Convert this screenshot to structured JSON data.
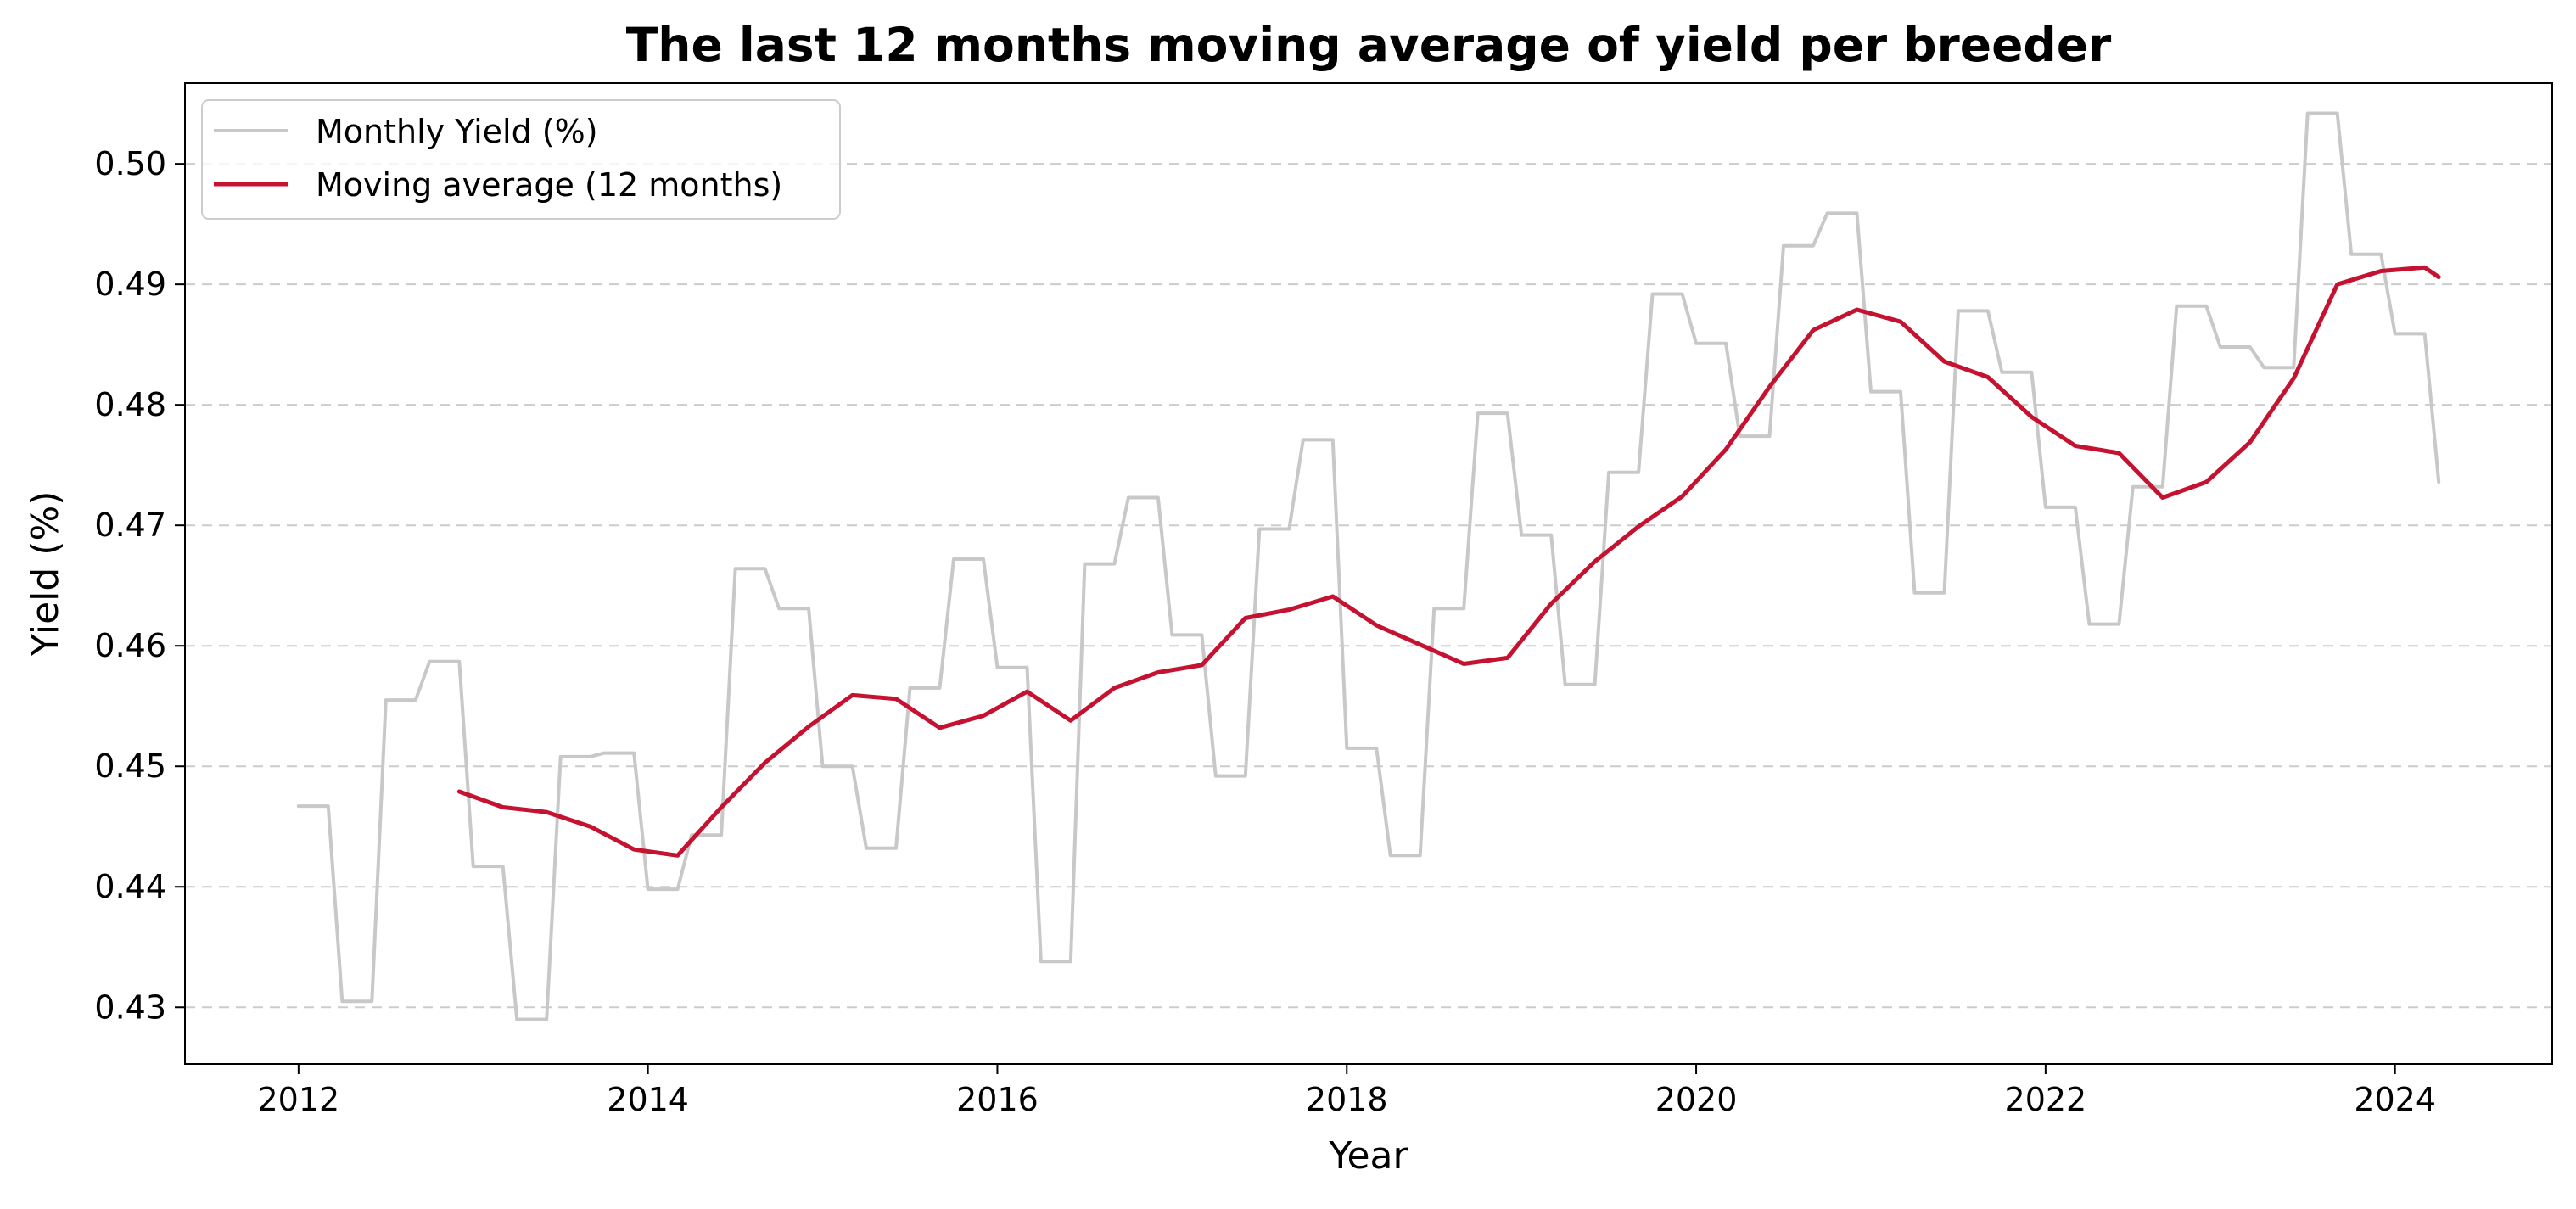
{
  "chart_data": {
    "type": "line",
    "title": "The last 12 months moving average of yield per breeder",
    "xlabel": "Year",
    "ylabel": "Yield (%)",
    "xlim": [
      2011.35,
      2024.9
    ],
    "ylim": [
      0.4253,
      0.5067
    ],
    "xticks": [
      2012,
      2014,
      2016,
      2018,
      2020,
      2022,
      2024
    ],
    "xtick_labels": [
      "2012",
      "2014",
      "2016",
      "2018",
      "2020",
      "2022",
      "2024"
    ],
    "yticks": [
      0.43,
      0.44,
      0.45,
      0.46,
      0.47,
      0.48,
      0.49,
      0.5
    ],
    "ytick_labels": [
      "0.43",
      "0.44",
      "0.45",
      "0.46",
      "0.47",
      "0.48",
      "0.49",
      "0.50"
    ],
    "grid": {
      "y": true,
      "x": false,
      "style": "dashed"
    },
    "legend": {
      "position": "upper-left",
      "entries": [
        "Monthly Yield (%)",
        "Moving average (12 months)"
      ]
    },
    "series": [
      {
        "name": "Monthly Yield (%)",
        "color": "#c8c8c8",
        "points": [
          [
            2012.0,
            0.4467
          ],
          [
            2012.17,
            0.4467
          ],
          [
            2012.25,
            0.4305
          ],
          [
            2012.42,
            0.4305
          ],
          [
            2012.5,
            0.4555
          ],
          [
            2012.67,
            0.4555
          ],
          [
            2012.75,
            0.4587
          ],
          [
            2012.92,
            0.4587
          ],
          [
            2013.0,
            0.4417
          ],
          [
            2013.17,
            0.4417
          ],
          [
            2013.25,
            0.429
          ],
          [
            2013.42,
            0.429
          ],
          [
            2013.5,
            0.4508
          ],
          [
            2013.67,
            0.4508
          ],
          [
            2013.75,
            0.4511
          ],
          [
            2013.92,
            0.4511
          ],
          [
            2014.0,
            0.4398
          ],
          [
            2014.17,
            0.4398
          ],
          [
            2014.25,
            0.4443
          ],
          [
            2014.42,
            0.4443
          ],
          [
            2014.5,
            0.4664
          ],
          [
            2014.67,
            0.4664
          ],
          [
            2014.75,
            0.4631
          ],
          [
            2014.92,
            0.4631
          ],
          [
            2015.0,
            0.45
          ],
          [
            2015.17,
            0.45
          ],
          [
            2015.25,
            0.4432
          ],
          [
            2015.42,
            0.4432
          ],
          [
            2015.5,
            0.4565
          ],
          [
            2015.67,
            0.4565
          ],
          [
            2015.75,
            0.4672
          ],
          [
            2015.92,
            0.4672
          ],
          [
            2016.0,
            0.4582
          ],
          [
            2016.17,
            0.4582
          ],
          [
            2016.25,
            0.4338
          ],
          [
            2016.42,
            0.4338
          ],
          [
            2016.5,
            0.4668
          ],
          [
            2016.67,
            0.4668
          ],
          [
            2016.75,
            0.4723
          ],
          [
            2016.92,
            0.4723
          ],
          [
            2017.0,
            0.4609
          ],
          [
            2017.17,
            0.4609
          ],
          [
            2017.25,
            0.4492
          ],
          [
            2017.42,
            0.4492
          ],
          [
            2017.5,
            0.4697
          ],
          [
            2017.67,
            0.4697
          ],
          [
            2017.75,
            0.4771
          ],
          [
            2017.92,
            0.4771
          ],
          [
            2018.0,
            0.4515
          ],
          [
            2018.17,
            0.4515
          ],
          [
            2018.25,
            0.4426
          ],
          [
            2018.42,
            0.4426
          ],
          [
            2018.5,
            0.4631
          ],
          [
            2018.67,
            0.4631
          ],
          [
            2018.75,
            0.4793
          ],
          [
            2018.92,
            0.4793
          ],
          [
            2019.0,
            0.4692
          ],
          [
            2019.17,
            0.4692
          ],
          [
            2019.25,
            0.4568
          ],
          [
            2019.42,
            0.4568
          ],
          [
            2019.5,
            0.4744
          ],
          [
            2019.67,
            0.4744
          ],
          [
            2019.75,
            0.4892
          ],
          [
            2019.92,
            0.4892
          ],
          [
            2020.0,
            0.4851
          ],
          [
            2020.17,
            0.4851
          ],
          [
            2020.25,
            0.4774
          ],
          [
            2020.42,
            0.4774
          ],
          [
            2020.5,
            0.4932
          ],
          [
            2020.67,
            0.4932
          ],
          [
            2020.75,
            0.4959
          ],
          [
            2020.92,
            0.4959
          ],
          [
            2021.0,
            0.4811
          ],
          [
            2021.17,
            0.4811
          ],
          [
            2021.25,
            0.4644
          ],
          [
            2021.42,
            0.4644
          ],
          [
            2021.5,
            0.4878
          ],
          [
            2021.67,
            0.4878
          ],
          [
            2021.75,
            0.4827
          ],
          [
            2021.92,
            0.4827
          ],
          [
            2022.0,
            0.4715
          ],
          [
            2022.17,
            0.4715
          ],
          [
            2022.25,
            0.4618
          ],
          [
            2022.42,
            0.4618
          ],
          [
            2022.5,
            0.4732
          ],
          [
            2022.67,
            0.4732
          ],
          [
            2022.75,
            0.4882
          ],
          [
            2022.92,
            0.4882
          ],
          [
            2023.0,
            0.4848
          ],
          [
            2023.17,
            0.4848
          ],
          [
            2023.25,
            0.4831
          ],
          [
            2023.42,
            0.4831
          ],
          [
            2023.5,
            0.5042
          ],
          [
            2023.67,
            0.5042
          ],
          [
            2023.75,
            0.4925
          ],
          [
            2023.92,
            0.4925
          ],
          [
            2024.0,
            0.4859
          ],
          [
            2024.17,
            0.4859
          ],
          [
            2024.25,
            0.4736
          ]
        ]
      },
      {
        "name": "Moving average (12 months)",
        "color": "#c41230",
        "points": [
          [
            2012.92,
            0.4479
          ],
          [
            2013.17,
            0.4466
          ],
          [
            2013.42,
            0.4462
          ],
          [
            2013.67,
            0.445
          ],
          [
            2013.92,
            0.4431
          ],
          [
            2014.17,
            0.4426
          ],
          [
            2014.42,
            0.4466
          ],
          [
            2014.67,
            0.4503
          ],
          [
            2014.92,
            0.4533
          ],
          [
            2015.17,
            0.4559
          ],
          [
            2015.42,
            0.4556
          ],
          [
            2015.67,
            0.4532
          ],
          [
            2015.92,
            0.4542
          ],
          [
            2016.17,
            0.4562
          ],
          [
            2016.42,
            0.4538
          ],
          [
            2016.67,
            0.4565
          ],
          [
            2016.92,
            0.4578
          ],
          [
            2017.17,
            0.4584
          ],
          [
            2017.42,
            0.4623
          ],
          [
            2017.67,
            0.463
          ],
          [
            2017.92,
            0.4641
          ],
          [
            2018.17,
            0.4617
          ],
          [
            2018.42,
            0.4601
          ],
          [
            2018.67,
            0.4585
          ],
          [
            2018.92,
            0.459
          ],
          [
            2019.17,
            0.4635
          ],
          [
            2019.42,
            0.467
          ],
          [
            2019.67,
            0.4699
          ],
          [
            2019.92,
            0.4724
          ],
          [
            2020.17,
            0.4763
          ],
          [
            2020.42,
            0.4815
          ],
          [
            2020.67,
            0.4862
          ],
          [
            2020.92,
            0.4879
          ],
          [
            2021.17,
            0.4869
          ],
          [
            2021.42,
            0.4836
          ],
          [
            2021.67,
            0.4823
          ],
          [
            2021.92,
            0.479
          ],
          [
            2022.17,
            0.4766
          ],
          [
            2022.42,
            0.476
          ],
          [
            2022.67,
            0.4723
          ],
          [
            2022.92,
            0.4736
          ],
          [
            2023.17,
            0.4769
          ],
          [
            2023.42,
            0.4822
          ],
          [
            2023.67,
            0.49
          ],
          [
            2023.92,
            0.4911
          ],
          [
            2024.17,
            0.4914
          ],
          [
            2024.25,
            0.4906
          ]
        ]
      }
    ]
  }
}
